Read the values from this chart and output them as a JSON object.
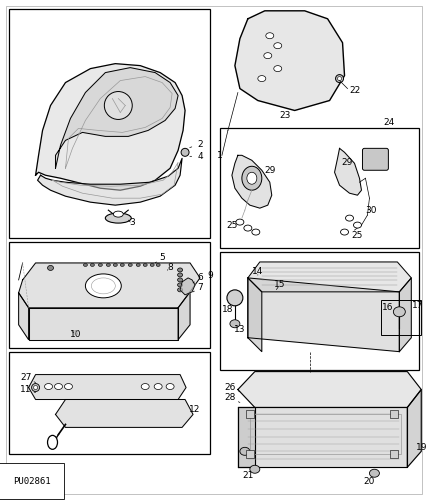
{
  "footer_text": "PU02861",
  "bg_color": "#ffffff",
  "lc": "#000000",
  "gc": "#999999",
  "fc": "#e0e0e0",
  "figsize": [
    4.28,
    5.0
  ],
  "dpi": 100
}
